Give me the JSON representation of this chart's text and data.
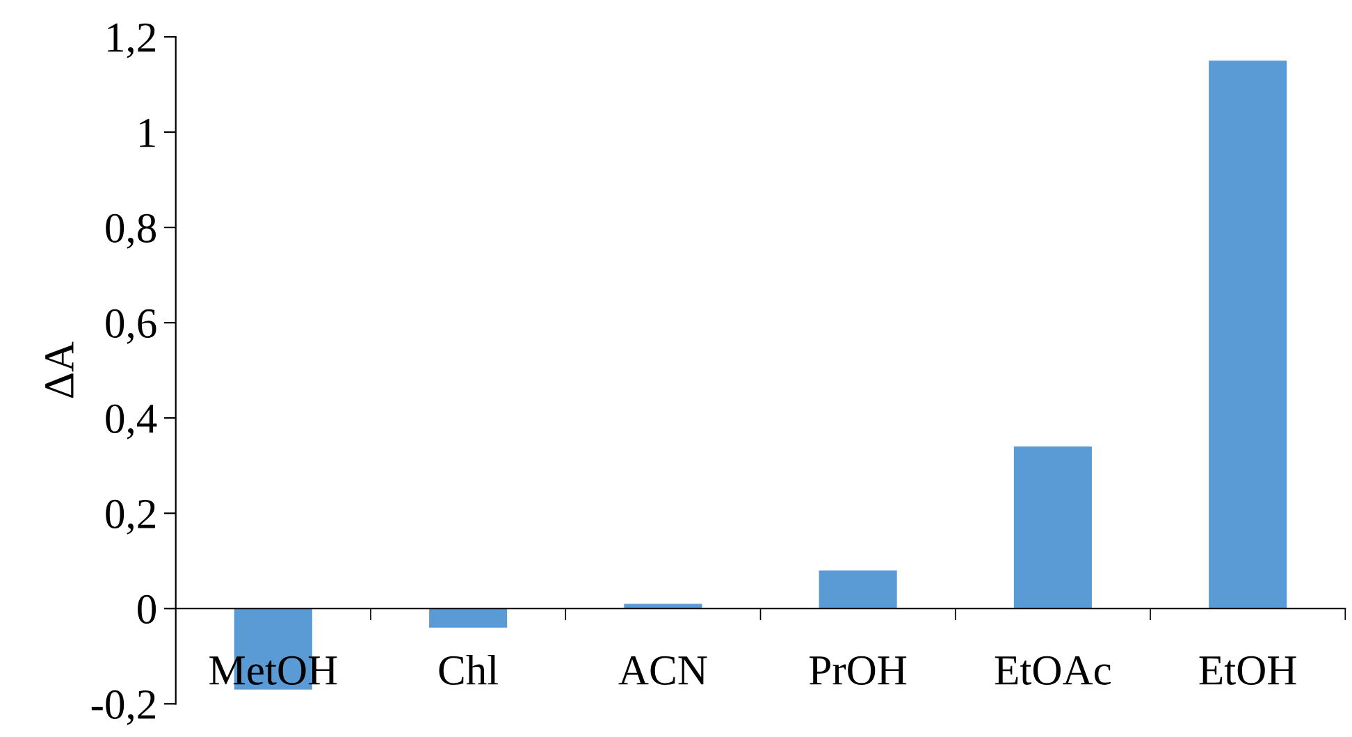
{
  "chart_data": {
    "type": "bar",
    "ylabel": "ΔA",
    "categories": [
      "MetOH",
      "Chl",
      "ACN",
      "PrOH",
      "EtOAc",
      "EtOH"
    ],
    "values": [
      -0.17,
      -0.04,
      0.01,
      0.08,
      0.34,
      1.15
    ],
    "color": "#5b9bd5",
    "ylim": [
      -0.2,
      1.2
    ],
    "yticks": [
      {
        "value": -0.2,
        "label": "-0,2"
      },
      0,
      {
        "value": 0.2,
        "label": "0,2"
      },
      {
        "value": 0.4,
        "label": "0,4"
      },
      {
        "value": 0.6,
        "label": "0,6"
      },
      {
        "value": 0.8,
        "label": "0,8"
      },
      1,
      {
        "value": 1.2,
        "label": "1,2"
      }
    ],
    "grid": false
  }
}
